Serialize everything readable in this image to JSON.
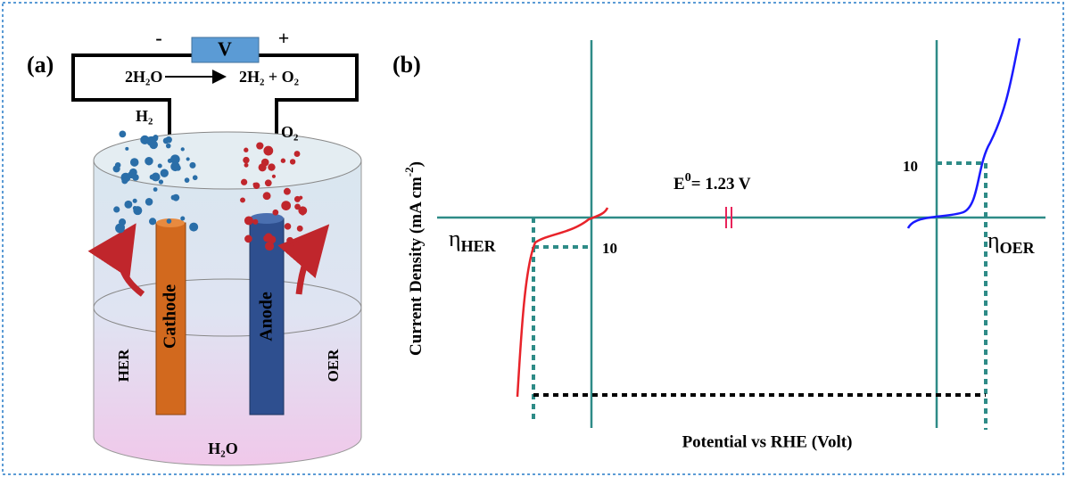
{
  "panel_a": {
    "label": "(a)",
    "minus": "-",
    "plus": "+",
    "voltmeter": "V",
    "reaction": {
      "left": "2H₂O",
      "right": "2H₂ + O₂"
    },
    "gas_left": "H₂",
    "gas_right": "O₂",
    "cathode": "Cathode",
    "anode": "Anode",
    "left_side": "HER",
    "right_side": "OER",
    "electrolyte": "H₂O"
  },
  "panel_b": {
    "label": "(b)",
    "y_axis": {
      "text": "Current Density (mA cm",
      "sup": "-2",
      "close": ")"
    },
    "x_axis": "Potential vs RHE (Volt)",
    "e0": {
      "symbol": "E",
      "sup": "0",
      "text": "= 1.23 V"
    },
    "her_current": "10",
    "oer_current": "10",
    "eta_her": {
      "symbol": "η",
      "sub": "HER"
    },
    "eta_oer": {
      "symbol": "η",
      "sub": "OER"
    }
  }
}
